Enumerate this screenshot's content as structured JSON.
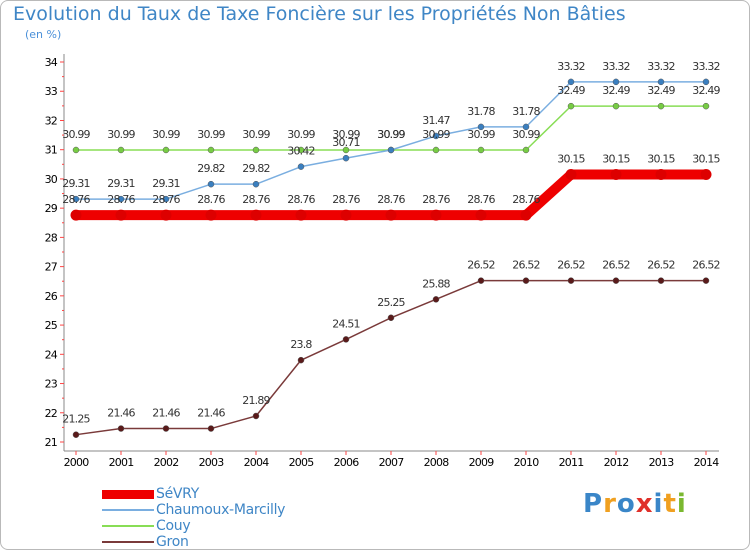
{
  "title": "Evolution du Taux de Taxe Foncière sur les Propriétés Non Bâties",
  "ylabel": "(en %)",
  "logo": {
    "letters": [
      "P",
      "r",
      "o",
      "x",
      "i",
      "t",
      "i"
    ],
    "colors": [
      "#3a86c8",
      "#f0a020",
      "#3a86c8",
      "#e0302a",
      "#3a86c8",
      "#f0a020",
      "#7ab830"
    ]
  },
  "chart_data": {
    "type": "line",
    "title": "Evolution du Taux de Taxe Foncière sur les Propriétés Non Bâties",
    "ylabel": "(en %)",
    "xlabel": "",
    "ylim": [
      21,
      34
    ],
    "yticks": [
      21,
      22,
      23,
      24,
      25,
      26,
      27,
      28,
      29,
      30,
      31,
      32,
      33,
      34
    ],
    "x": [
      2000,
      2001,
      2002,
      2003,
      2004,
      2005,
      2006,
      2007,
      2008,
      2009,
      2010,
      2011,
      2012,
      2013,
      2014
    ],
    "grid": false,
    "legend_position": "bottom-left",
    "series": [
      {
        "name": "SéVRY",
        "color": "#ee0000",
        "marker_color": "#dd0000",
        "values": [
          28.76,
          28.76,
          28.76,
          28.76,
          28.76,
          28.76,
          28.76,
          28.76,
          28.76,
          28.76,
          28.76,
          30.15,
          30.15,
          30.15,
          30.15
        ],
        "labels": [
          "28.76",
          "28.76",
          "28.76",
          "28.76",
          "28.76",
          "28.76",
          "28.76",
          "28.76",
          "28.76",
          "28.76",
          "28.76",
          "30.15",
          "30.15",
          "30.15",
          "30.15"
        ]
      },
      {
        "name": "Chaumoux-Marcilly",
        "color": "#7aaee0",
        "marker_color": "#3a7fc0",
        "values": [
          29.31,
          29.31,
          29.31,
          29.82,
          29.82,
          30.42,
          30.71,
          30.99,
          31.47,
          31.78,
          31.78,
          33.32,
          33.32,
          33.32,
          33.32
        ],
        "labels": [
          "29.31",
          "29.31",
          "29.31",
          "29.82",
          "29.82",
          "30.42",
          "30.71",
          "30.99",
          "31.47",
          "31.78",
          "31.78",
          "33.32",
          "33.32",
          "33.32",
          "33.32"
        ]
      },
      {
        "name": "Couy",
        "color": "#88dd55",
        "marker_color": "#77cc44",
        "values": [
          30.99,
          30.99,
          30.99,
          30.99,
          30.99,
          30.99,
          30.99,
          30.99,
          30.99,
          30.99,
          30.99,
          32.49,
          32.49,
          32.49,
          32.49
        ],
        "labels": [
          "30.99",
          "30.99",
          "30.99",
          "30.99",
          "30.99",
          "30.99",
          "30.99",
          "30.99",
          "30.99",
          "30.99",
          "30.99",
          "32.49",
          "32.49",
          "32.49",
          "32.49"
        ]
      },
      {
        "name": "Gron",
        "color": "#7a3a3a",
        "marker_color": "#5a1a1a",
        "values": [
          21.25,
          21.46,
          21.46,
          21.46,
          21.89,
          23.8,
          24.51,
          25.25,
          25.88,
          26.52,
          26.52,
          26.52,
          26.52,
          26.52,
          26.52
        ],
        "labels": [
          "21.25",
          "21.46",
          "21.46",
          "21.46",
          "21.89",
          "23.8",
          "24.51",
          "25.25",
          "25.88",
          "26.52",
          "26.52",
          "26.52",
          "26.52",
          "26.52",
          "26.52"
        ]
      }
    ]
  }
}
